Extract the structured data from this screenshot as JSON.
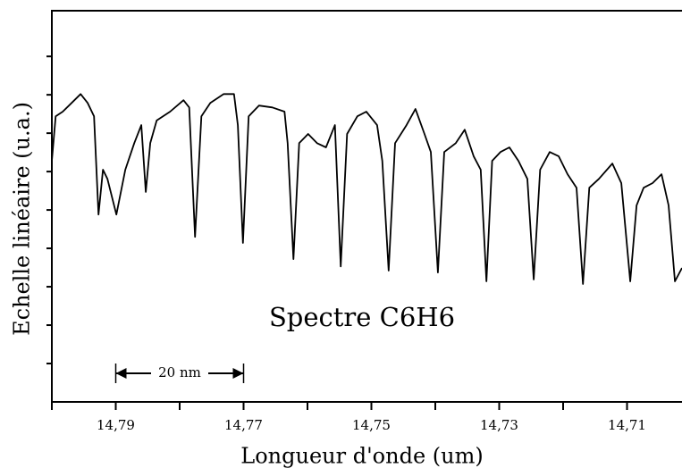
{
  "chart_data": {
    "type": "line",
    "xlabel": "Longueur d'onde (um)",
    "ylabel": "Echelle linéaire (u.a.)",
    "annotation": "Spectre C6H6",
    "scale_bar": {
      "label": "20 nm",
      "from": 14.79,
      "to": 14.77
    },
    "color": "#000000",
    "xlim": [
      14.8,
      14.7014
    ],
    "xticks": [
      {
        "value": 14.79,
        "label": "14,79"
      },
      {
        "value": 14.77,
        "label": "14,77"
      },
      {
        "value": 14.75,
        "label": "14,75"
      },
      {
        "value": 14.73,
        "label": "14,73"
      },
      {
        "value": 14.71,
        "label": "14,71"
      }
    ],
    "xminorticks": [
      14.8,
      14.78,
      14.76,
      14.74,
      14.72
    ],
    "ylim": [
      0,
      10.19
    ],
    "yticks": [
      1,
      2,
      3,
      4,
      5,
      6,
      7,
      8,
      9
    ],
    "ytick_labels": false,
    "x": [
      14.8,
      14.7994,
      14.7983,
      14.7969,
      14.7955,
      14.7944,
      14.7934,
      14.7927,
      14.792,
      14.7913,
      14.7899,
      14.7885,
      14.7871,
      14.786,
      14.7853,
      14.7846,
      14.7836,
      14.7815,
      14.7794,
      14.7785,
      14.7776,
      14.7766,
      14.7752,
      14.7731,
      14.7715,
      14.7709,
      14.7701,
      14.7692,
      14.7676,
      14.7655,
      14.7636,
      14.7631,
      14.7622,
      14.7613,
      14.7599,
      14.7585,
      14.7571,
      14.7557,
      14.7548,
      14.7538,
      14.7522,
      14.7508,
      14.7491,
      14.7483,
      14.7473,
      14.7463,
      14.7445,
      14.7431,
      14.7417,
      14.7407,
      14.7396,
      14.7386,
      14.7368,
      14.7354,
      14.734,
      14.7329,
      14.732,
      14.7311,
      14.7298,
      14.7284,
      14.727,
      14.7256,
      14.7246,
      14.7236,
      14.7221,
      14.7207,
      14.7193,
      14.7179,
      14.7169,
      14.7159,
      14.7144,
      14.7123,
      14.7109,
      14.7095,
      14.7085,
      14.7074,
      14.706,
      14.7046,
      14.7035,
      14.7025,
      14.7014
    ],
    "values": [
      6.28,
      7.44,
      7.56,
      7.79,
      8.02,
      7.79,
      7.44,
      4.88,
      6.05,
      5.81,
      4.88,
      6.05,
      6.74,
      7.21,
      5.47,
      6.74,
      7.33,
      7.56,
      7.86,
      7.67,
      4.3,
      7.44,
      7.79,
      8.02,
      8.02,
      7.21,
      4.14,
      7.44,
      7.72,
      7.67,
      7.56,
      6.74,
      3.72,
      6.74,
      6.98,
      6.74,
      6.63,
      7.21,
      3.53,
      6.98,
      7.44,
      7.56,
      7.21,
      6.28,
      3.42,
      6.74,
      7.21,
      7.63,
      6.98,
      6.51,
      3.37,
      6.51,
      6.74,
      7.09,
      6.4,
      6.05,
      3.14,
      6.28,
      6.51,
      6.63,
      6.28,
      5.81,
      3.19,
      6.05,
      6.51,
      6.4,
      5.93,
      5.58,
      3.07,
      5.58,
      5.81,
      6.21,
      5.7,
      3.14,
      5.12,
      5.58,
      5.7,
      5.93,
      5.12,
      3.14,
      3.49
    ]
  }
}
